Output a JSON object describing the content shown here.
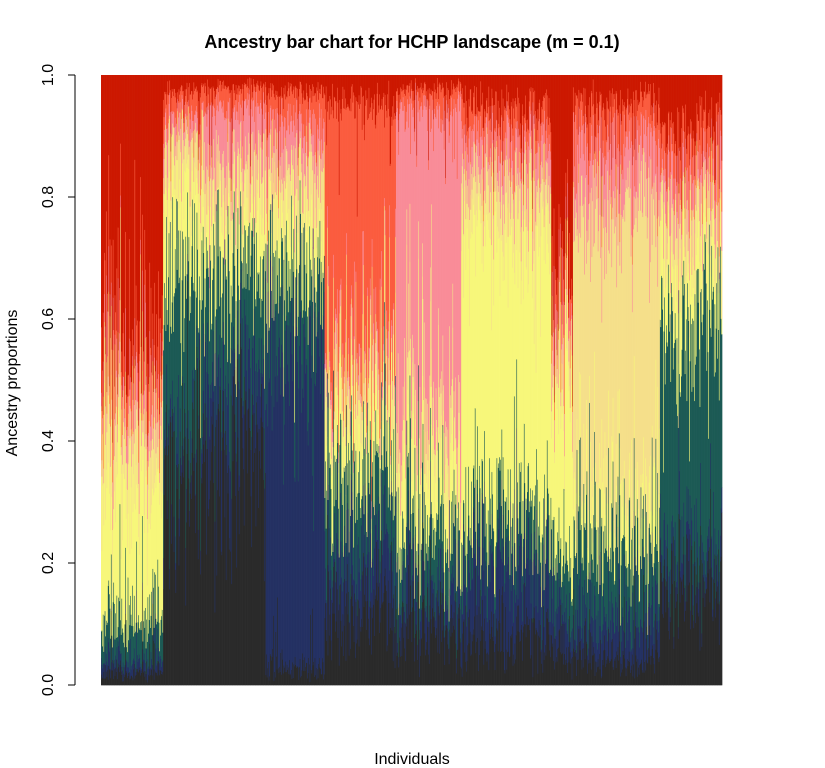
{
  "chart_data": {
    "type": "bar",
    "stacked": true,
    "title": "Ancestry bar chart for HCHP landscape (m = 0.1)",
    "xlabel": "Individuals",
    "ylabel": "Ancestry proportions",
    "ylim": [
      0,
      1
    ],
    "yticks": [
      "0.0",
      "0.2",
      "0.4",
      "0.6",
      "0.8",
      "1.0"
    ],
    "grid": false,
    "legend": "none",
    "n_individuals": 1000,
    "cluster_order": [
      "K1",
      "K2",
      "K3",
      "K4",
      "K5",
      "K6",
      "K7",
      "K8"
    ],
    "colors": {
      "K1": "#2a2a2a",
      "K2": "#243163",
      "K3": "#1c5a55",
      "K4": "#f7f77a",
      "K5": "#f5df8a",
      "K6": "#f98c98",
      "K7": "#fb5c3f",
      "K8": "#cc1800"
    },
    "groups": [
      {
        "start": 0,
        "end": 100,
        "mean": {
          "K1": 0.02,
          "K2": 0.02,
          "K3": 0.06,
          "K4": 0.22,
          "K5": 0.1,
          "K6": 0.05,
          "K7": 0.08,
          "K8": 0.45
        }
      },
      {
        "start": 100,
        "end": 165,
        "mean": {
          "K1": 0.38,
          "K2": 0.04,
          "K3": 0.26,
          "K4": 0.15,
          "K5": 0.07,
          "K6": 0.03,
          "K7": 0.04,
          "K8": 0.03
        }
      },
      {
        "start": 165,
        "end": 265,
        "mean": {
          "K1": 0.4,
          "K2": 0.13,
          "K3": 0.17,
          "K4": 0.1,
          "K5": 0.06,
          "K6": 0.09,
          "K7": 0.03,
          "K8": 0.02
        }
      },
      {
        "start": 265,
        "end": 360,
        "mean": {
          "K1": 0.03,
          "K2": 0.52,
          "K3": 0.13,
          "K4": 0.1,
          "K5": 0.07,
          "K6": 0.07,
          "K7": 0.05,
          "K8": 0.03
        }
      },
      {
        "start": 360,
        "end": 475,
        "mean": {
          "K1": 0.12,
          "K2": 0.1,
          "K3": 0.12,
          "K4": 0.1,
          "K5": 0.06,
          "K6": 0.03,
          "K7": 0.42,
          "K8": 0.05
        }
      },
      {
        "start": 475,
        "end": 580,
        "mean": {
          "K1": 0.09,
          "K2": 0.06,
          "K3": 0.09,
          "K4": 0.12,
          "K5": 0.06,
          "K6": 0.53,
          "K7": 0.03,
          "K8": 0.02
        }
      },
      {
        "start": 580,
        "end": 725,
        "mean": {
          "K1": 0.08,
          "K2": 0.12,
          "K3": 0.08,
          "K4": 0.47,
          "K5": 0.08,
          "K6": 0.06,
          "K7": 0.05,
          "K8": 0.06
        }
      },
      {
        "start": 725,
        "end": 760,
        "mean": {
          "K1": 0.05,
          "K2": 0.06,
          "K3": 0.08,
          "K4": 0.32,
          "K5": 0.05,
          "K6": 0.05,
          "K7": 0.04,
          "K8": 0.35
        }
      },
      {
        "start": 760,
        "end": 900,
        "mean": {
          "K1": 0.04,
          "K2": 0.07,
          "K3": 0.12,
          "K4": 0.08,
          "K5": 0.48,
          "K6": 0.1,
          "K7": 0.06,
          "K8": 0.05
        }
      },
      {
        "start": 900,
        "end": 1000,
        "mean": {
          "K1": 0.17,
          "K2": 0.05,
          "K3": 0.4,
          "K4": 0.1,
          "K5": 0.07,
          "K6": 0.06,
          "K7": 0.06,
          "K8": 0.09
        }
      }
    ]
  }
}
